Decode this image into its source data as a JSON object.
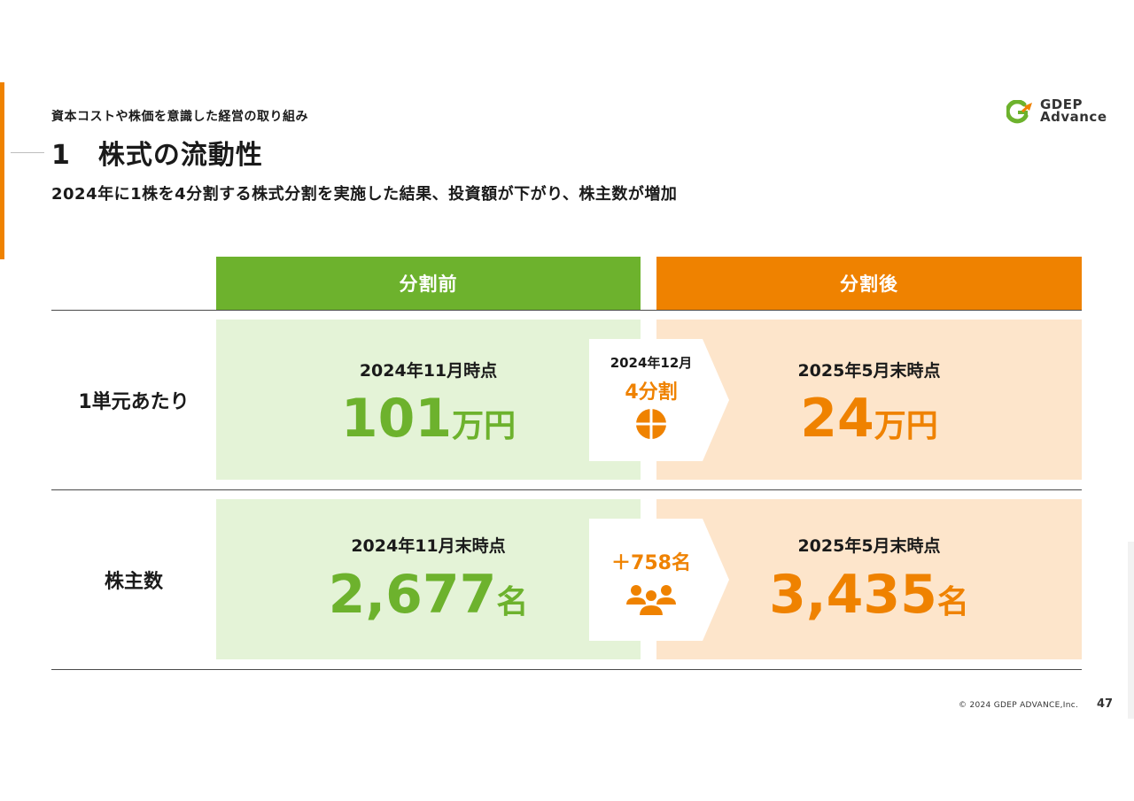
{
  "header": {
    "section": "資本コストや株価を意識した経営の取り組み",
    "title": "1　株式の流動性",
    "subtitle": "2024年に1株を4分割する株式分割を実施した結果、投資額が下がり、株主数が増加"
  },
  "logo": {
    "line1": "GDEP",
    "line2": "Advance"
  },
  "table": {
    "col_before": "分割前",
    "col_after": "分割後",
    "rows": [
      {
        "label": "1単元あたり",
        "before_date": "2024年11月時点",
        "before_value": "101",
        "before_unit": "万円",
        "after_date": "2025年5月末時点",
        "after_value": "24",
        "after_unit": "万円",
        "arrow_top": "2024年12月",
        "arrow_main": "4分割",
        "arrow_icon": "split-circle-icon"
      },
      {
        "label": "株主数",
        "before_date": "2024年11月末時点",
        "before_value": "2,677",
        "before_unit": "名",
        "after_date": "2025年5月末時点",
        "after_value": "3,435",
        "after_unit": "名",
        "arrow_main": "＋758名",
        "arrow_icon": "people-group-icon"
      }
    ]
  },
  "footer": {
    "copyright": "© 2024 GDEP ADVANCE,Inc.",
    "page": "47"
  },
  "colors": {
    "green": "#6db22d",
    "green_light": "#e4f3d7",
    "orange": "#ef8200",
    "orange_light": "#fde5cb"
  }
}
